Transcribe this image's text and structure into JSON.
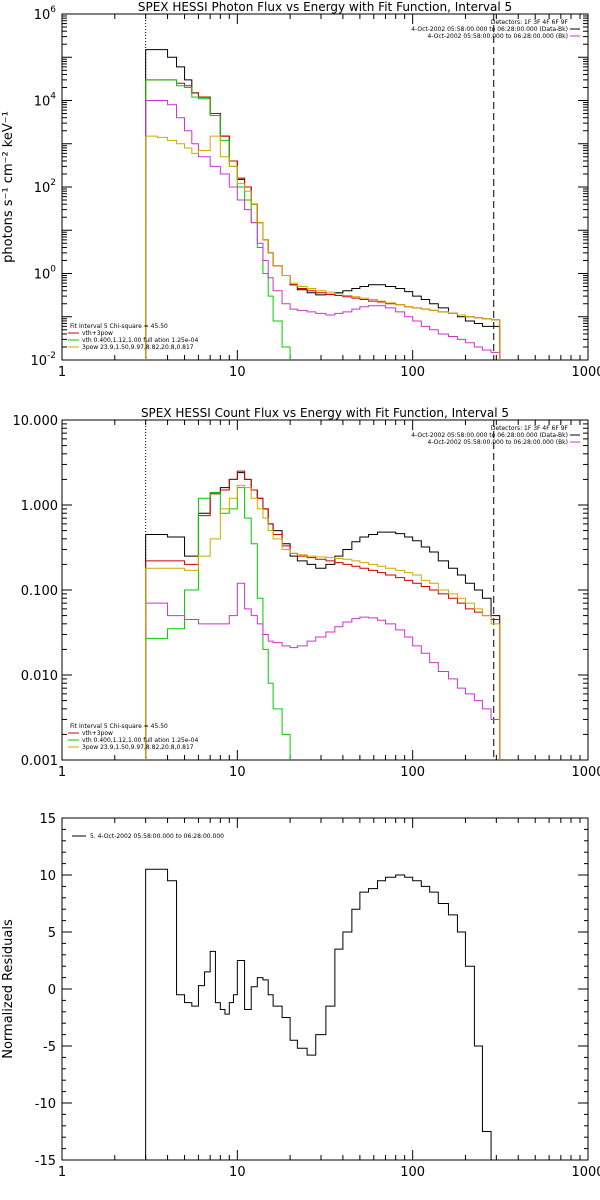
{
  "chart_data": [
    {
      "type": "line",
      "title": "SPEX HESSI Photon Flux vs Energy with Fit Function, Interval 5",
      "xlabel": "",
      "ylabel": "photons s⁻¹ cm⁻² keV⁻¹",
      "xscale": "log",
      "yscale": "log",
      "xlim": [
        1,
        1000
      ],
      "ylim": [
        0.01,
        1000000
      ],
      "x_ticks": [
        "1",
        "10",
        "100",
        "1000"
      ],
      "y_ticks": [
        {
          "base": "10",
          "exp": "-2"
        },
        {
          "base": "10",
          "exp": "0"
        },
        {
          "base": "10",
          "exp": "2"
        },
        {
          "base": "10",
          "exp": "4"
        },
        {
          "base": "10",
          "exp": "6"
        }
      ],
      "legend_top_right": [
        "Detectors: 1F 3F 4F 6F 9F",
        "4-Oct-2002 05:58:00.000 to 06:28:00.000 (Data-Bk)",
        "4-Oct-2002 05:58:00.000 to 06:28:00.000 (Bk)"
      ],
      "legend_bottom_left": [
        "Fit Interval 5   Chi-square = 45.50",
        "vth+3pow",
        "vth 0.400,1.12,1.00  full ation 1.25e-04",
        "3pow 23.9,1.50,9.97,8.82,20.8,0.817"
      ],
      "vlines": {
        "low": 3,
        "high": 290
      },
      "series": [
        {
          "color": "#000000",
          "x": [
            3,
            3.5,
            4,
            4.5,
            5,
            5.5,
            6,
            7,
            8,
            9,
            10,
            11,
            12,
            13,
            14,
            15,
            16,
            18,
            20,
            22,
            25,
            28,
            32,
            36,
            40,
            45,
            50,
            56,
            63,
            70,
            80,
            90,
            100,
            112,
            125,
            140,
            160,
            180,
            200,
            225,
            250,
            280
          ],
          "y": [
            150000,
            150000,
            100000,
            60000,
            30000,
            15000,
            12000,
            5000,
            1500,
            400,
            150,
            100,
            40,
            15,
            6,
            3,
            1.5,
            0.9,
            0.55,
            0.42,
            0.36,
            0.32,
            0.33,
            0.36,
            0.4,
            0.45,
            0.5,
            0.55,
            0.55,
            0.5,
            0.45,
            0.38,
            0.3,
            0.25,
            0.2,
            0.16,
            0.12,
            0.1,
            0.08,
            0.07,
            0.06,
            0.06
          ]
        },
        {
          "color": "#cc0000",
          "x": [
            3,
            3.5,
            4,
            4.5,
            5,
            5.5,
            6,
            7,
            8,
            9,
            10,
            11,
            12,
            13,
            14,
            15,
            16,
            18,
            20,
            22,
            25,
            28,
            32,
            36,
            40,
            45,
            50,
            56,
            63,
            70,
            80,
            90,
            100,
            112,
            125,
            140,
            160,
            180,
            200,
            225,
            250,
            280
          ],
          "y": [
            30000,
            30000,
            30000,
            25000,
            22000,
            15000,
            12000,
            5000,
            1500,
            400,
            160,
            100,
            40,
            15,
            6,
            3,
            1.5,
            0.9,
            0.55,
            0.45,
            0.4,
            0.36,
            0.33,
            0.31,
            0.29,
            0.27,
            0.25,
            0.23,
            0.22,
            0.2,
            0.19,
            0.17,
            0.16,
            0.15,
            0.14,
            0.13,
            0.12,
            0.11,
            0.1,
            0.095,
            0.09,
            0.085
          ]
        },
        {
          "color": "#00cc00",
          "x": [
            3,
            3.5,
            4,
            4.5,
            5,
            5.5,
            6,
            7,
            8,
            9,
            10,
            11,
            12,
            13,
            14,
            15,
            16,
            18,
            20
          ],
          "y": [
            30000,
            30000,
            30000,
            22000,
            20000,
            12000,
            11000,
            4500,
            1200,
            300,
            100,
            50,
            15,
            4,
            1,
            0.3,
            0.08,
            0.02,
            0.005
          ]
        },
        {
          "color": "#cc33cc",
          "x": [
            3,
            3.5,
            4,
            4.5,
            5,
            5.5,
            6,
            7,
            8,
            9,
            10,
            11,
            12,
            13,
            14,
            15,
            16,
            18,
            20,
            22,
            25,
            28,
            32,
            36,
            40,
            45,
            50,
            56,
            63,
            70,
            80,
            90,
            100,
            112,
            125,
            140,
            160,
            180,
            200,
            225,
            250,
            280
          ],
          "y": [
            10000,
            10000,
            8000,
            4000,
            2000,
            1000,
            500,
            300,
            200,
            100,
            50,
            30,
            15,
            5,
            2,
            0.8,
            0.4,
            0.2,
            0.15,
            0.14,
            0.13,
            0.12,
            0.11,
            0.12,
            0.13,
            0.15,
            0.17,
            0.18,
            0.18,
            0.16,
            0.13,
            0.1,
            0.08,
            0.06,
            0.05,
            0.04,
            0.035,
            0.03,
            0.025,
            0.02,
            0.017,
            0.015
          ]
        },
        {
          "color": "#ccaa00",
          "x": [
            3,
            3.5,
            4,
            4.5,
            5,
            5.5,
            6,
            7,
            8,
            9,
            10,
            11,
            12,
            13,
            14,
            15,
            16,
            18,
            20,
            22,
            25,
            28,
            32,
            36,
            40,
            45,
            50,
            56,
            63,
            70,
            80,
            90,
            100,
            112,
            125,
            140,
            160,
            180,
            200,
            225,
            250,
            280
          ],
          "y": [
            1500,
            1400,
            1200,
            1000,
            800,
            600,
            700,
            1500,
            500,
            300,
            120,
            80,
            40,
            15,
            6,
            3,
            1.5,
            0.9,
            0.6,
            0.5,
            0.45,
            0.4,
            0.37,
            0.34,
            0.31,
            0.29,
            0.27,
            0.25,
            0.23,
            0.21,
            0.19,
            0.17,
            0.16,
            0.15,
            0.14,
            0.13,
            0.12,
            0.11,
            0.1,
            0.095,
            0.09,
            0.085
          ]
        }
      ]
    },
    {
      "type": "line",
      "title": "SPEX HESSI Count Flux vs Energy with Fit Function, Interval 5",
      "xlabel": "",
      "ylabel": "",
      "xscale": "log",
      "yscale": "log",
      "xlim": [
        1,
        1000
      ],
      "ylim": [
        0.001,
        10
      ],
      "x_ticks": [
        "1",
        "10",
        "100",
        "1000"
      ],
      "y_ticks": [
        "0.001",
        "0.010",
        "0.100",
        "1.000",
        "10.000"
      ],
      "legend_top_right": [
        "Detectors: 1F 3F 4F 6F 9F",
        "4-Oct-2002 05:58:00.000 to 06:28:00.000 (Data-Bk)",
        "4-Oct-2002 05:58:00.000 to 06:28:00.000 (Bk)"
      ],
      "legend_bottom_left": [
        "Fit Interval 5   Chi-square = 45.50",
        "vth+3pow",
        "vth 0.400,1.12,1.00  full ation 1.25e-04",
        "3pow 23.9,1.50,9.97,8.82,20.8,0.817"
      ],
      "vlines": {
        "low": 3,
        "high": 290
      },
      "series": [
        {
          "color": "#000000",
          "x": [
            3,
            4,
            5,
            6,
            7,
            8,
            9,
            10,
            11,
            12,
            13,
            14,
            15,
            16,
            18,
            20,
            22,
            25,
            28,
            32,
            36,
            40,
            45,
            50,
            56,
            63,
            70,
            80,
            90,
            100,
            112,
            125,
            140,
            160,
            180,
            200,
            225,
            250,
            280
          ],
          "y": [
            0.45,
            0.42,
            0.25,
            0.8,
            1.4,
            1.6,
            2.0,
            2.4,
            2.0,
            1.5,
            1.2,
            0.9,
            0.6,
            0.5,
            0.35,
            0.25,
            0.22,
            0.2,
            0.18,
            0.2,
            0.25,
            0.3,
            0.37,
            0.42,
            0.45,
            0.48,
            0.48,
            0.46,
            0.42,
            0.38,
            0.32,
            0.28,
            0.22,
            0.18,
            0.15,
            0.12,
            0.1,
            0.08,
            0.05
          ]
        },
        {
          "color": "#cc0000",
          "x": [
            3,
            4,
            5,
            6,
            7,
            8,
            9,
            10,
            11,
            12,
            13,
            14,
            15,
            16,
            18,
            20,
            22,
            25,
            28,
            32,
            36,
            40,
            45,
            50,
            56,
            63,
            70,
            80,
            90,
            100,
            112,
            125,
            140,
            160,
            180,
            200,
            225,
            250,
            280
          ],
          "y": [
            0.22,
            0.22,
            0.2,
            0.75,
            1.35,
            1.5,
            2.0,
            2.5,
            2.0,
            1.5,
            1.2,
            0.9,
            0.6,
            0.45,
            0.33,
            0.27,
            0.25,
            0.24,
            0.23,
            0.22,
            0.21,
            0.2,
            0.19,
            0.18,
            0.17,
            0.16,
            0.15,
            0.14,
            0.13,
            0.12,
            0.11,
            0.1,
            0.09,
            0.08,
            0.07,
            0.06,
            0.055,
            0.05,
            0.045
          ]
        },
        {
          "color": "#00cc00",
          "x": [
            3,
            4,
            5,
            6,
            7,
            8,
            9,
            10,
            11,
            12,
            13,
            14,
            15,
            16,
            18,
            20
          ],
          "y": [
            0.027,
            0.035,
            0.1,
            1.2,
            1.4,
            0.8,
            0.9,
            1.6,
            0.7,
            0.35,
            0.08,
            0.02,
            0.008,
            0.004,
            0.002,
            0.0008
          ]
        },
        {
          "color": "#cc33cc",
          "x": [
            3,
            4,
            5,
            6,
            7,
            8,
            9,
            10,
            11,
            12,
            13,
            14,
            15,
            16,
            18,
            20,
            22,
            25,
            28,
            32,
            36,
            40,
            45,
            50,
            56,
            63,
            70,
            80,
            90,
            100,
            112,
            125,
            140,
            160,
            180,
            200,
            225,
            250,
            280
          ],
          "y": [
            0.07,
            0.05,
            0.045,
            0.04,
            0.04,
            0.04,
            0.05,
            0.12,
            0.06,
            0.05,
            0.04,
            0.03,
            0.025,
            0.024,
            0.022,
            0.021,
            0.022,
            0.025,
            0.028,
            0.032,
            0.037,
            0.042,
            0.046,
            0.048,
            0.047,
            0.044,
            0.04,
            0.034,
            0.028,
            0.022,
            0.018,
            0.014,
            0.011,
            0.009,
            0.007,
            0.006,
            0.005,
            0.004,
            0.003
          ]
        },
        {
          "color": "#ccaa00",
          "x": [
            3,
            4,
            5,
            6,
            7,
            8,
            9,
            10,
            11,
            12,
            13,
            14,
            15,
            16,
            18,
            20,
            22,
            25,
            28,
            32,
            36,
            40,
            45,
            50,
            56,
            63,
            70,
            80,
            90,
            100,
            112,
            125,
            140,
            160,
            180,
            200,
            225,
            250,
            280
          ],
          "y": [
            0.18,
            0.18,
            0.17,
            0.25,
            0.4,
            0.9,
            1.2,
            1.7,
            1.6,
            1.2,
            0.9,
            0.7,
            0.5,
            0.4,
            0.3,
            0.27,
            0.26,
            0.25,
            0.245,
            0.24,
            0.235,
            0.23,
            0.22,
            0.21,
            0.2,
            0.19,
            0.18,
            0.17,
            0.16,
            0.15,
            0.13,
            0.12,
            0.1,
            0.09,
            0.08,
            0.07,
            0.06,
            0.05,
            0.04
          ]
        }
      ]
    },
    {
      "type": "line",
      "title": "",
      "xlabel": "",
      "ylabel": "Normalized Residuals",
      "xscale": "log",
      "yscale": "linear",
      "xlim": [
        1,
        1000
      ],
      "ylim": [
        -15,
        15
      ],
      "x_ticks": [
        "1",
        "10",
        "100",
        "1000"
      ],
      "y_ticks": [
        "-15",
        "-10",
        "-5",
        "0",
        "5",
        "10",
        "15"
      ],
      "legend": "5.  4-Oct-2002 05:58:00.000 to 06:28:00.000",
      "series": [
        {
          "color": "#000000",
          "x": [
            3,
            3.5,
            4,
            4.5,
            5,
            5.5,
            6,
            6.5,
            7,
            7.5,
            8,
            8.5,
            9,
            9.5,
            10,
            11,
            12,
            13,
            14,
            15,
            16,
            18,
            20,
            22,
            25,
            28,
            32,
            36,
            40,
            45,
            50,
            56,
            63,
            70,
            80,
            90,
            100,
            112,
            125,
            140,
            160,
            180,
            200,
            225,
            250,
            280
          ],
          "y": [
            10.5,
            10.5,
            9.5,
            -0.5,
            -1.2,
            -1.5,
            0.3,
            1.5,
            3.3,
            -1.2,
            -1.8,
            -2.2,
            -1.2,
            -0.5,
            2.5,
            -1.8,
            0.2,
            1.0,
            0.8,
            -0.5,
            -1.5,
            -2.5,
            -4.5,
            -5.2,
            -5.8,
            -4.0,
            -1.5,
            3.5,
            5.0,
            7.0,
            8.5,
            8.8,
            9.5,
            9.8,
            10.0,
            9.8,
            9.5,
            9.0,
            8.5,
            7.5,
            6.5,
            5.0,
            2.0,
            -5.0,
            -12.5,
            -15.0
          ]
        }
      ]
    }
  ]
}
